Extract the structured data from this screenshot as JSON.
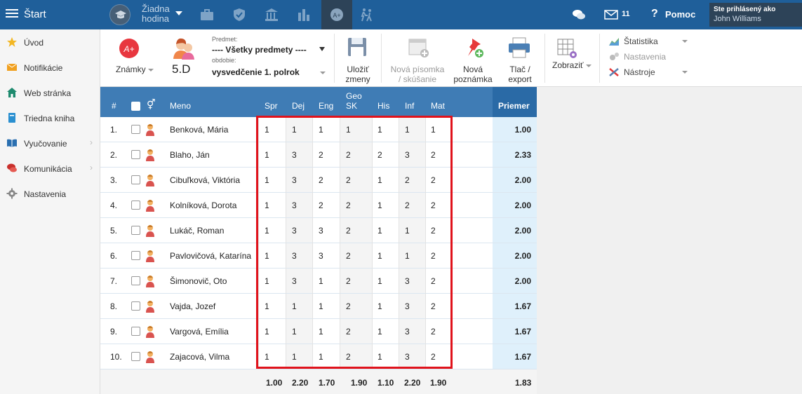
{
  "topbar": {
    "start_label": "Štart",
    "no_lesson_line1": "Žiadna",
    "no_lesson_line2": "hodina",
    "mail_count": "11",
    "help_label": "Pomoc",
    "logged_in_label": "Ste prihlásený ako",
    "user_name": "John Williams",
    "bar_color": "#1f5f9a"
  },
  "sidebar": {
    "items": [
      {
        "label": "Úvod",
        "icon": "star-icon"
      },
      {
        "label": "Notifikácie",
        "icon": "envelope-icon"
      },
      {
        "label": "Web stránka",
        "icon": "home-icon"
      },
      {
        "label": "Triedna kniha",
        "icon": "book-icon"
      },
      {
        "label": "Vyučovanie",
        "icon": "open-book-icon"
      },
      {
        "label": "Komunikácia",
        "icon": "chat-icon"
      },
      {
        "label": "Nastavenia",
        "icon": "gear-icon"
      }
    ]
  },
  "toolbar": {
    "grades_label": "Známky",
    "class_label": "5.D",
    "subject_small": "Predmet:",
    "subject_value": "---- Všetky predmety ----",
    "period_small": "obdobie:",
    "period_value": "vysvedčenie 1. polrok",
    "save_line1": "Uložiť",
    "save_line2": "zmeny",
    "new_test_line1": "Nová písomka",
    "new_test_line2": "/ skúšanie",
    "new_note_line1": "Nová",
    "new_note_line2": "poznámka",
    "print_line1": "Tlač /",
    "print_line2": "export",
    "view_label": "Zobraziť",
    "stats_label": "Štatistika",
    "settings_label": "Nastavenia",
    "tools_label": "Nástroje"
  },
  "table": {
    "headers": {
      "num": "#",
      "name": "Meno",
      "subjects": [
        "Spr",
        "Dej",
        "Eng",
        "Geo SK",
        "His",
        "Inf",
        "Mat"
      ],
      "average": "Priemer"
    },
    "rows": [
      {
        "num": "1.",
        "name": "Benková, Mária",
        "grades": [
          "1",
          "1",
          "1",
          "1",
          "1",
          "1",
          "1"
        ],
        "avg": "1.00"
      },
      {
        "num": "2.",
        "name": "Blaho, Ján",
        "grades": [
          "1",
          "3",
          "2",
          "2",
          "2",
          "3",
          "2"
        ],
        "avg": "2.33"
      },
      {
        "num": "3.",
        "name": "Cibuľková, Viktória",
        "grades": [
          "1",
          "3",
          "2",
          "2",
          "1",
          "2",
          "2"
        ],
        "avg": "2.00"
      },
      {
        "num": "4.",
        "name": "Kolníková, Dorota",
        "grades": [
          "1",
          "3",
          "2",
          "2",
          "1",
          "2",
          "2"
        ],
        "avg": "2.00"
      },
      {
        "num": "5.",
        "name": "Lukáč, Roman",
        "grades": [
          "1",
          "3",
          "3",
          "2",
          "1",
          "1",
          "2"
        ],
        "avg": "2.00"
      },
      {
        "num": "6.",
        "name": "Pavlovičová, Katarína",
        "grades": [
          "1",
          "3",
          "3",
          "2",
          "1",
          "1",
          "2"
        ],
        "avg": "2.00"
      },
      {
        "num": "7.",
        "name": "Šimonovič, Oto",
        "grades": [
          "1",
          "3",
          "1",
          "2",
          "1",
          "3",
          "2"
        ],
        "avg": "2.00"
      },
      {
        "num": "8.",
        "name": "Vajda, Jozef",
        "grades": [
          "1",
          "1",
          "1",
          "2",
          "1",
          "3",
          "2"
        ],
        "avg": "1.67"
      },
      {
        "num": "9.",
        "name": "Vargová, Emília",
        "grades": [
          "1",
          "1",
          "1",
          "2",
          "1",
          "3",
          "2"
        ],
        "avg": "1.67"
      },
      {
        "num": "10.",
        "name": "Zajacová, Vilma",
        "grades": [
          "1",
          "1",
          "1",
          "2",
          "1",
          "3",
          "2"
        ],
        "avg": "1.67"
      }
    ],
    "footer": [
      "1.00",
      "2.20",
      "1.70",
      "1.90",
      "1.10",
      "2.20",
      "1.90"
    ],
    "footer_avg": "1.83"
  }
}
